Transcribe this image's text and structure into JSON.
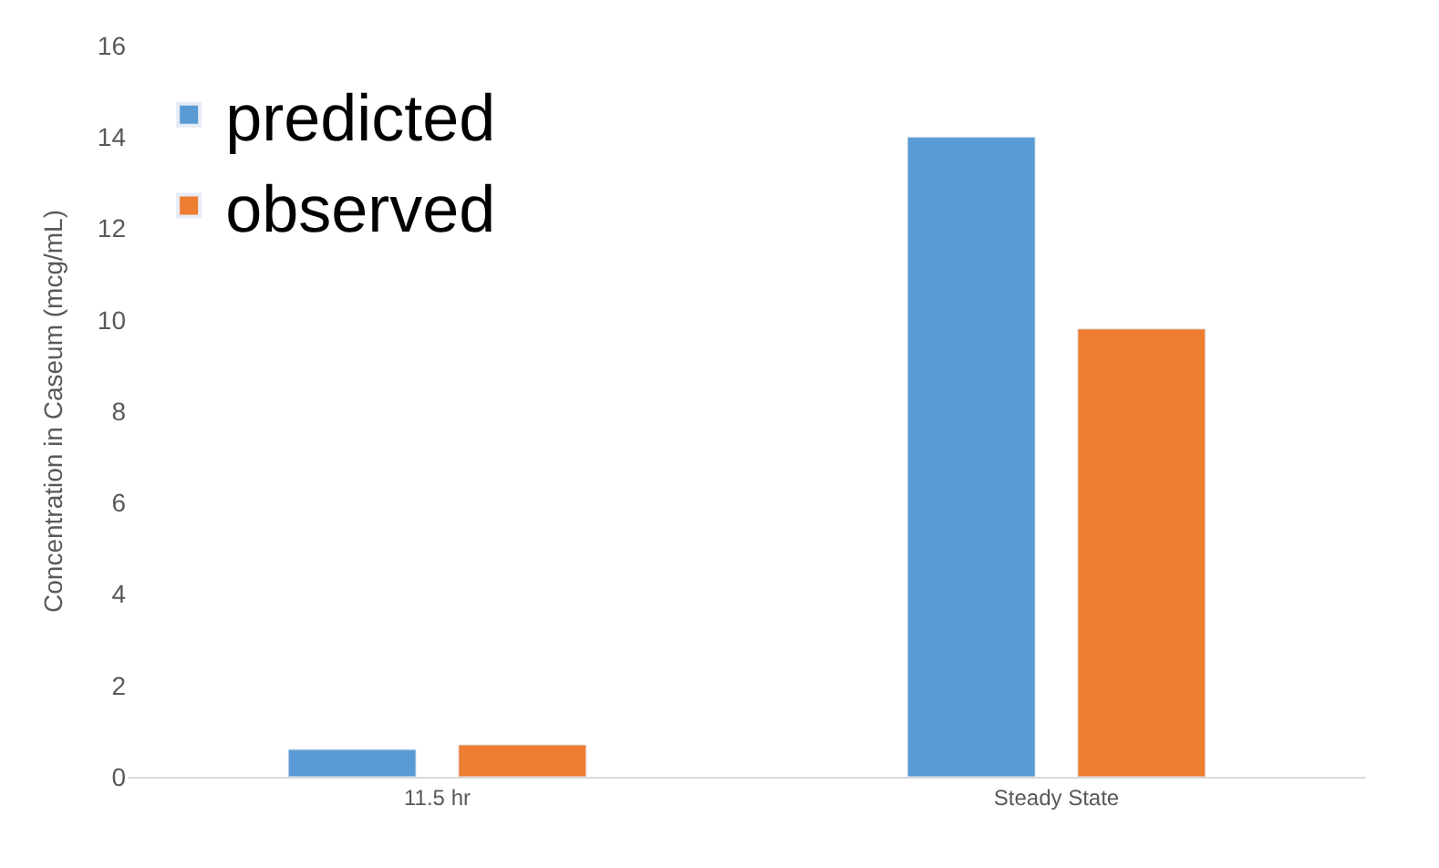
{
  "chart_data": {
    "type": "bar",
    "ylabel": "Concentration in Caseum (mcg/mL)",
    "categories": [
      "11.5 hr",
      "Steady State"
    ],
    "series": [
      {
        "name": "predicted",
        "color": "#5b9bd5",
        "values": [
          0.6,
          14.0
        ]
      },
      {
        "name": "observed",
        "color": "#ed7d31",
        "values": [
          0.7,
          9.8
        ]
      }
    ],
    "ylim": [
      0,
      16
    ],
    "yticks": [
      0,
      2,
      4,
      6,
      8,
      10,
      12,
      14,
      16
    ],
    "legend": "top left"
  }
}
